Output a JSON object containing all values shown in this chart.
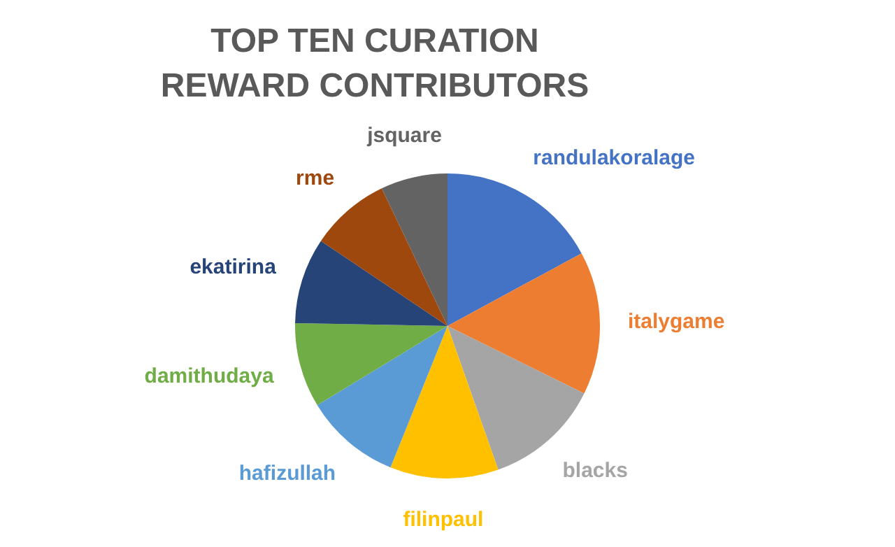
{
  "chart_data": {
    "type": "pie",
    "title": "TOP TEN CURATION REWARD CONTRIBUTORS",
    "categories": [
      "randulakoralage",
      "italygame",
      "blacks",
      "filinpaul",
      "hafizullah",
      "damithudaya",
      "ekatirina",
      "rme",
      "jsquare"
    ],
    "values": [
      17.1,
      15.2,
      12.3,
      11.5,
      10.2,
      9.0,
      9.1,
      8.5,
      7.1
    ],
    "colors": [
      "#4472c4",
      "#ed7d31",
      "#a5a5a5",
      "#ffc000",
      "#5b9bd5",
      "#70ad47",
      "#264478",
      "#9e480e",
      "#636363"
    ],
    "legend": false
  }
}
